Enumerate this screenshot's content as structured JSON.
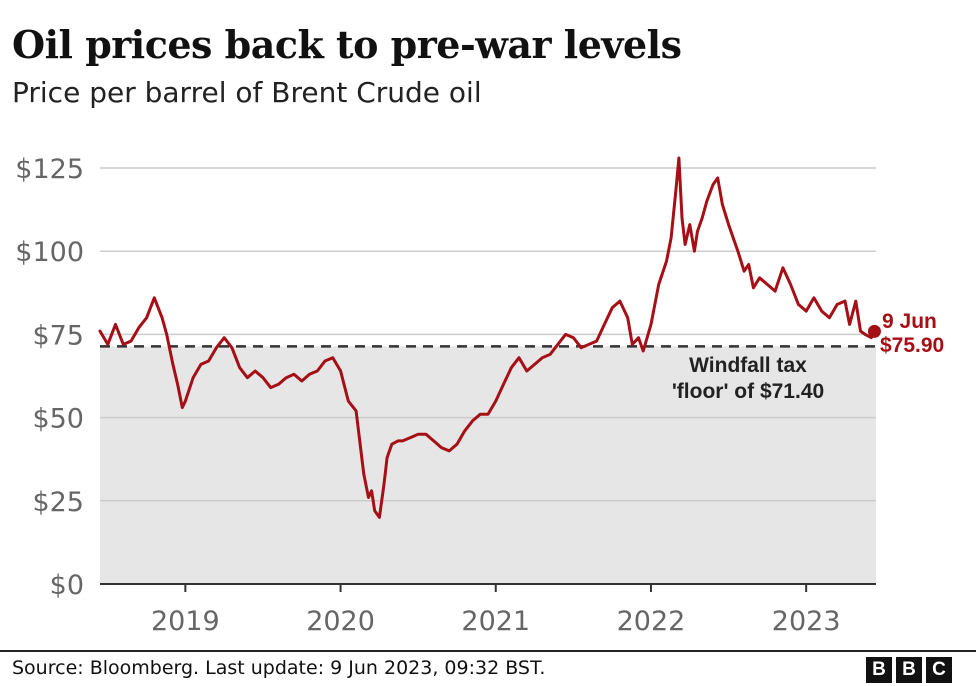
{
  "header": {
    "title": "Oil prices back to pre-war levels",
    "subtitle": "Price per barrel of Brent Crude oil"
  },
  "footer": {
    "source": "Source: Bloomberg. Last update: 9 Jun 2023, 09:32 BST.",
    "logo_letters": [
      "B",
      "B",
      "C"
    ]
  },
  "colors": {
    "series": "#a50f15",
    "floor_band": "#e6e6e6",
    "grid": "#cccccc",
    "axis_text": "#666666"
  },
  "chart_data": {
    "type": "line",
    "title": "Oil prices back to pre-war levels",
    "subtitle": "Price per barrel of Brent Crude oil",
    "xlabel": "",
    "ylabel": "",
    "ylim": [
      0,
      125
    ],
    "xlim": [
      2018.45,
      2023.45
    ],
    "yticks": [
      0,
      25,
      50,
      75,
      100,
      125
    ],
    "ytick_labels": [
      "$0",
      "$25",
      "$50",
      "$75",
      "$100",
      "$125"
    ],
    "xticks": [
      2019,
      2020,
      2021,
      2022,
      2023
    ],
    "xtick_labels": [
      "2019",
      "2020",
      "2021",
      "2022",
      "2023"
    ],
    "grid": true,
    "series": [
      {
        "name": "Brent Crude",
        "x": [
          2018.45,
          2018.5,
          2018.55,
          2018.6,
          2018.65,
          2018.7,
          2018.75,
          2018.8,
          2018.85,
          2018.88,
          2018.92,
          2018.95,
          2018.98,
          2019.0,
          2019.05,
          2019.1,
          2019.15,
          2019.2,
          2019.25,
          2019.3,
          2019.35,
          2019.4,
          2019.45,
          2019.5,
          2019.55,
          2019.6,
          2019.65,
          2019.7,
          2019.75,
          2019.8,
          2019.85,
          2019.9,
          2019.95,
          2020.0,
          2020.05,
          2020.1,
          2020.15,
          2020.18,
          2020.2,
          2020.22,
          2020.25,
          2020.28,
          2020.3,
          2020.33,
          2020.37,
          2020.4,
          2020.45,
          2020.5,
          2020.55,
          2020.6,
          2020.65,
          2020.7,
          2020.75,
          2020.8,
          2020.85,
          2020.9,
          2020.95,
          2021.0,
          2021.05,
          2021.1,
          2021.15,
          2021.2,
          2021.25,
          2021.3,
          2021.35,
          2021.4,
          2021.45,
          2021.5,
          2021.55,
          2021.6,
          2021.65,
          2021.7,
          2021.75,
          2021.8,
          2021.85,
          2021.88,
          2021.92,
          2021.95,
          2022.0,
          2022.05,
          2022.1,
          2022.13,
          2022.16,
          2022.18,
          2022.2,
          2022.22,
          2022.25,
          2022.28,
          2022.3,
          2022.33,
          2022.36,
          2022.4,
          2022.43,
          2022.46,
          2022.5,
          2022.53,
          2022.56,
          2022.6,
          2022.63,
          2022.66,
          2022.7,
          2022.75,
          2022.8,
          2022.85,
          2022.9,
          2022.95,
          2023.0,
          2023.05,
          2023.1,
          2023.15,
          2023.2,
          2023.25,
          2023.28,
          2023.32,
          2023.35,
          2023.38,
          2023.42,
          2023.44
        ],
        "values": [
          76,
          72,
          78,
          72,
          73,
          77,
          80,
          86,
          80,
          75,
          66,
          60,
          53,
          55,
          62,
          66,
          67,
          71,
          74,
          71,
          65,
          62,
          64,
          62,
          59,
          60,
          62,
          63,
          61,
          63,
          64,
          67,
          68,
          64,
          55,
          52,
          33,
          26,
          28,
          22,
          20,
          30,
          38,
          42,
          43,
          43,
          44,
          45,
          45,
          43,
          41,
          40,
          42,
          46,
          49,
          51,
          51,
          55,
          60,
          65,
          68,
          64,
          66,
          68,
          69,
          72,
          75,
          74,
          71,
          72,
          73,
          78,
          83,
          85,
          80,
          72,
          74,
          70,
          78,
          90,
          97,
          104,
          118,
          128,
          110,
          102,
          108,
          100,
          106,
          110,
          115,
          120,
          122,
          114,
          108,
          104,
          100,
          94,
          96,
          89,
          92,
          90,
          88,
          95,
          90,
          84,
          82,
          86,
          82,
          80,
          84,
          85,
          78,
          85,
          76,
          75,
          74,
          75.9
        ],
        "end_label": {
          "date": "9 Jun",
          "value_text": "$75.90",
          "value": 75.9
        }
      }
    ],
    "reference_line": {
      "value": 71.4,
      "label_lines": [
        "Windfall tax",
        "'floor' of $71.40"
      ],
      "shaded_below": true
    }
  }
}
